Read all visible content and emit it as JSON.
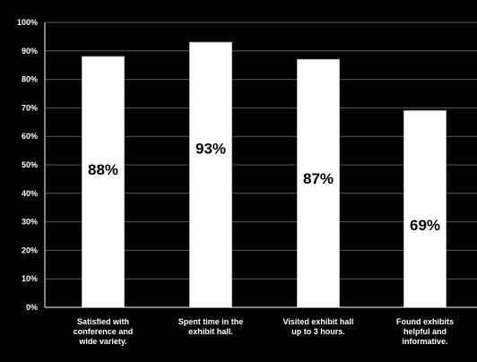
{
  "chart_data": {
    "type": "bar",
    "categories": [
      [
        "Satisfied with",
        "conference and",
        "wide variety."
      ],
      [
        "Spent time in the",
        "exhibit hall."
      ],
      [
        "Visited exhibit hall",
        "up to 3 hours."
      ],
      [
        "Found exhibits",
        "helpful and",
        "informative."
      ]
    ],
    "values": [
      88,
      93,
      87,
      69
    ],
    "data_labels": [
      "88%",
      "93%",
      "87%",
      "69%"
    ],
    "y_ticks": [
      "0%",
      "10%",
      "20%",
      "30%",
      "40%",
      "50%",
      "60%",
      "70%",
      "80%",
      "90%",
      "100%"
    ],
    "ylim": [
      0,
      100
    ],
    "grid": true,
    "legend": "none",
    "title": "",
    "xlabel": "",
    "ylabel": "",
    "colors": {
      "background": "#000000",
      "bar": "#ffffff",
      "bar_outline": "#bbbbbb",
      "gridline": "#5a5a5a",
      "axis": "#ffffff",
      "text": "#ffffff",
      "data_label": "#000000"
    }
  }
}
